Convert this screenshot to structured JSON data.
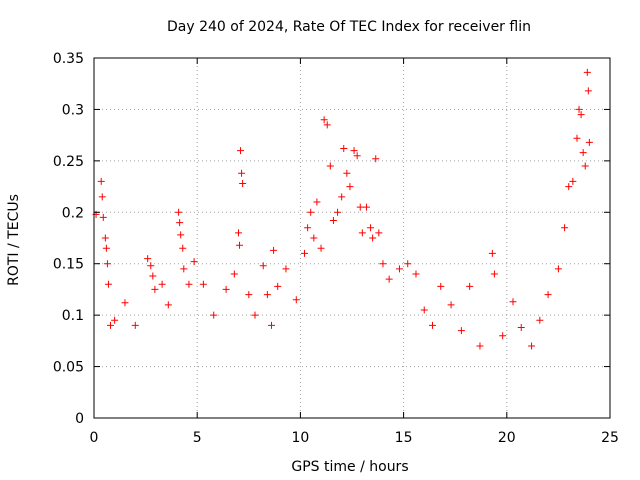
{
  "chart_data": {
    "type": "scatter",
    "title": "Day 240 of 2024, Rate Of TEC Index for receiver flin",
    "xlabel": "GPS time / hours",
    "ylabel": "ROTI / TECUs",
    "xlim": [
      0,
      25
    ],
    "ylim": [
      0,
      0.35
    ],
    "xticks": [
      "0",
      "5",
      "10",
      "15",
      "20",
      "25"
    ],
    "yticks": [
      "0",
      "0.05",
      "0.1",
      "0.15",
      "0.2",
      "0.25",
      "0.3",
      "0.35"
    ],
    "grid": true,
    "marker": "plus",
    "color": "#ff0000",
    "series": [
      {
        "values": [
          [
            0.1,
            0.198
          ],
          [
            0.35,
            0.23
          ],
          [
            0.4,
            0.215
          ],
          [
            0.45,
            0.195
          ],
          [
            0.55,
            0.175
          ],
          [
            0.6,
            0.165
          ],
          [
            0.65,
            0.15
          ],
          [
            0.7,
            0.13
          ],
          [
            0.8,
            0.09
          ],
          [
            1.0,
            0.095
          ],
          [
            1.5,
            0.112
          ],
          [
            2.0,
            0.09
          ],
          [
            2.6,
            0.155
          ],
          [
            2.75,
            0.148
          ],
          [
            2.85,
            0.138
          ],
          [
            2.95,
            0.125
          ],
          [
            3.3,
            0.13
          ],
          [
            3.6,
            0.11
          ],
          [
            4.1,
            0.2
          ],
          [
            4.15,
            0.19
          ],
          [
            4.2,
            0.178
          ],
          [
            4.3,
            0.165
          ],
          [
            4.35,
            0.145
          ],
          [
            4.6,
            0.13
          ],
          [
            4.85,
            0.152
          ],
          [
            5.3,
            0.13
          ],
          [
            5.8,
            0.1
          ],
          [
            6.4,
            0.125
          ],
          [
            6.8,
            0.14
          ],
          [
            7.0,
            0.18
          ],
          [
            7.05,
            0.168
          ],
          [
            7.1,
            0.26
          ],
          [
            7.15,
            0.238
          ],
          [
            7.2,
            0.228
          ],
          [
            7.5,
            0.12
          ],
          [
            7.8,
            0.1
          ],
          [
            8.2,
            0.148
          ],
          [
            8.4,
            0.12
          ],
          [
            8.6,
            0.09
          ],
          [
            8.7,
            0.163
          ],
          [
            8.9,
            0.128
          ],
          [
            9.3,
            0.145
          ],
          [
            9.8,
            0.115
          ],
          [
            10.2,
            0.16
          ],
          [
            10.35,
            0.185
          ],
          [
            10.5,
            0.2
          ],
          [
            10.65,
            0.175
          ],
          [
            10.8,
            0.21
          ],
          [
            11.0,
            0.165
          ],
          [
            11.15,
            0.29
          ],
          [
            11.3,
            0.285
          ],
          [
            11.45,
            0.245
          ],
          [
            11.6,
            0.192
          ],
          [
            11.8,
            0.2
          ],
          [
            12.0,
            0.215
          ],
          [
            12.1,
            0.262
          ],
          [
            12.25,
            0.238
          ],
          [
            12.4,
            0.225
          ],
          [
            12.6,
            0.26
          ],
          [
            12.75,
            0.255
          ],
          [
            12.9,
            0.205
          ],
          [
            13.0,
            0.18
          ],
          [
            13.2,
            0.205
          ],
          [
            13.4,
            0.185
          ],
          [
            13.5,
            0.175
          ],
          [
            13.65,
            0.252
          ],
          [
            13.8,
            0.18
          ],
          [
            14.0,
            0.15
          ],
          [
            14.3,
            0.135
          ],
          [
            14.8,
            0.145
          ],
          [
            15.2,
            0.15
          ],
          [
            15.6,
            0.14
          ],
          [
            16.0,
            0.105
          ],
          [
            16.4,
            0.09
          ],
          [
            16.8,
            0.128
          ],
          [
            17.3,
            0.11
          ],
          [
            17.8,
            0.085
          ],
          [
            18.2,
            0.128
          ],
          [
            18.7,
            0.07
          ],
          [
            19.3,
            0.16
          ],
          [
            19.4,
            0.14
          ],
          [
            19.8,
            0.08
          ],
          [
            20.3,
            0.113
          ],
          [
            20.7,
            0.088
          ],
          [
            21.2,
            0.07
          ],
          [
            21.6,
            0.095
          ],
          [
            22.0,
            0.12
          ],
          [
            22.5,
            0.145
          ],
          [
            22.8,
            0.185
          ],
          [
            23.0,
            0.225
          ],
          [
            23.2,
            0.23
          ],
          [
            23.4,
            0.272
          ],
          [
            23.5,
            0.3
          ],
          [
            23.6,
            0.295
          ],
          [
            23.7,
            0.258
          ],
          [
            23.8,
            0.245
          ],
          [
            23.9,
            0.336
          ],
          [
            23.95,
            0.318
          ],
          [
            24.0,
            0.268
          ]
        ]
      }
    ]
  }
}
